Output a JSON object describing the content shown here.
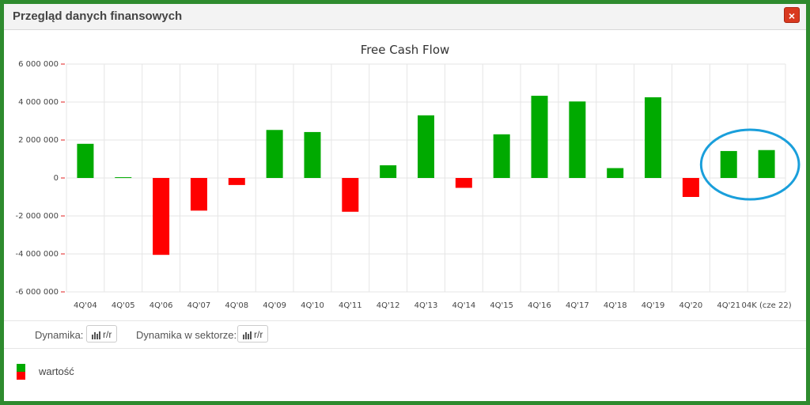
{
  "window": {
    "title": "Przegląd danych finansowych",
    "close_label": "×"
  },
  "chart_data": {
    "type": "bar",
    "title": "Free Cash Flow",
    "categories": [
      "4Q'04",
      "4Q'05",
      "4Q'06",
      "4Q'07",
      "4Q'08",
      "4Q'09",
      "4Q'10",
      "4Q'11",
      "4Q'12",
      "4Q'13",
      "4Q'14",
      "4Q'15",
      "4Q'16",
      "4Q'17",
      "4Q'18",
      "4Q'19",
      "4Q'20",
      "4Q'21",
      "04K (cze 22)"
    ],
    "series": [
      {
        "name": "wartość",
        "values": [
          1800000,
          40000,
          -4050000,
          -1720000,
          -370000,
          2530000,
          2420000,
          -1780000,
          670000,
          3300000,
          -520000,
          2300000,
          4330000,
          4030000,
          520000,
          4250000,
          -1000000,
          1420000,
          1470000
        ]
      }
    ],
    "ylim": [
      -6000000,
      6000000
    ],
    "yticks": [
      "6 000 000",
      "4 000 000",
      "2 000 000",
      "0",
      "-2 000 000",
      "-4 000 000",
      "-6 000 000"
    ],
    "ytick_values": [
      6000000,
      4000000,
      2000000,
      0,
      -2000000,
      -4000000,
      -6000000
    ],
    "grid": true,
    "colors": {
      "positive": "#00aa00",
      "negative": "#ff0000",
      "highlight": "#1a9fdb"
    },
    "highlighted_categories": [
      "4Q'21",
      "04K (cze 22)"
    ]
  },
  "controls": {
    "dynamics_label": "Dynamika:",
    "dynamics_button": "r/r",
    "sector_label": "Dynamika w sektorze:",
    "sector_button": "r/r"
  },
  "legend": {
    "label": "wartość",
    "colors": [
      "#00aa00",
      "#ff0000"
    ]
  }
}
